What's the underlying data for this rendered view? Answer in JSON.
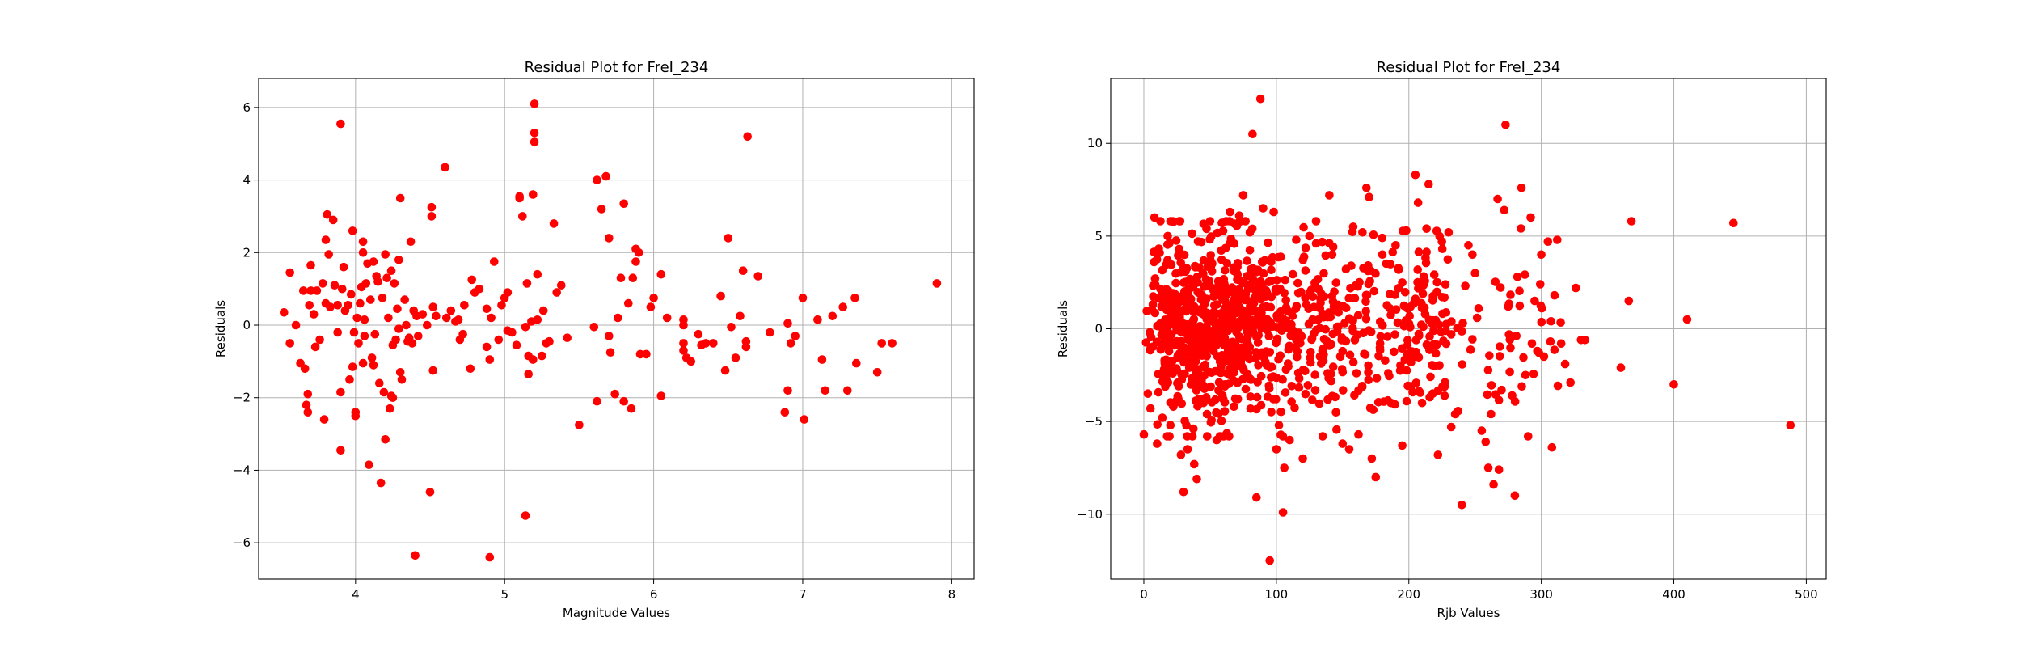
{
  "chart_data": [
    {
      "type": "scatter",
      "title": "Residual Plot for FreI_234",
      "xlabel": "Magnitude Values",
      "ylabel": "Residuals",
      "xlim": [
        3.35,
        8.15
      ],
      "ylim": [
        -7.0,
        6.8
      ],
      "xticks": [
        4,
        5,
        6,
        7,
        8
      ],
      "yticks": [
        -6,
        -4,
        -2,
        0,
        2,
        4,
        6
      ],
      "grid": true,
      "marker_color": "#ff0000",
      "points": [
        [
          3.52,
          0.35
        ],
        [
          3.56,
          1.45
        ],
        [
          3.56,
          -0.5
        ],
        [
          3.6,
          0.0
        ],
        [
          3.63,
          -1.05
        ],
        [
          3.65,
          0.95
        ],
        [
          3.66,
          -1.2
        ],
        [
          3.67,
          -2.2
        ],
        [
          3.68,
          -1.9
        ],
        [
          3.68,
          -2.4
        ],
        [
          3.69,
          0.55
        ],
        [
          3.7,
          1.65
        ],
        [
          3.7,
          0.95
        ],
        [
          3.72,
          0.3
        ],
        [
          3.73,
          -0.6
        ],
        [
          3.74,
          0.95
        ],
        [
          3.76,
          -0.4
        ],
        [
          3.78,
          1.15
        ],
        [
          3.79,
          -2.6
        ],
        [
          3.8,
          2.35
        ],
        [
          3.8,
          0.6
        ],
        [
          3.81,
          3.05
        ],
        [
          3.82,
          1.95
        ],
        [
          3.83,
          0.5
        ],
        [
          3.85,
          2.9
        ],
        [
          3.86,
          1.1
        ],
        [
          3.88,
          0.55
        ],
        [
          3.88,
          -0.2
        ],
        [
          3.9,
          5.55
        ],
        [
          3.9,
          -3.45
        ],
        [
          3.9,
          -1.85
        ],
        [
          3.91,
          1.0
        ],
        [
          3.92,
          1.6
        ],
        [
          3.93,
          0.4
        ],
        [
          3.95,
          0.55
        ],
        [
          3.96,
          -1.5
        ],
        [
          3.97,
          0.85
        ],
        [
          3.98,
          2.6
        ],
        [
          3.98,
          -1.15
        ],
        [
          3.99,
          -0.2
        ],
        [
          4.0,
          -2.5
        ],
        [
          4.0,
          -2.4
        ],
        [
          4.01,
          0.2
        ],
        [
          4.02,
          -0.5
        ],
        [
          4.03,
          0.6
        ],
        [
          4.04,
          1.05
        ],
        [
          4.05,
          2.3
        ],
        [
          4.05,
          2.0
        ],
        [
          4.05,
          -1.05
        ],
        [
          4.06,
          -0.3
        ],
        [
          4.06,
          0.15
        ],
        [
          4.07,
          1.15
        ],
        [
          4.08,
          1.7
        ],
        [
          4.09,
          -3.85
        ],
        [
          4.1,
          0.7
        ],
        [
          4.11,
          -0.9
        ],
        [
          4.12,
          -1.1
        ],
        [
          4.12,
          1.75
        ],
        [
          4.13,
          -0.25
        ],
        [
          4.14,
          1.35
        ],
        [
          4.15,
          1.2
        ],
        [
          4.16,
          -1.6
        ],
        [
          4.17,
          -4.35
        ],
        [
          4.18,
          0.75
        ],
        [
          4.19,
          -1.85
        ],
        [
          4.2,
          1.95
        ],
        [
          4.2,
          -3.15
        ],
        [
          4.21,
          1.3
        ],
        [
          4.22,
          0.2
        ],
        [
          4.23,
          -2.3
        ],
        [
          4.24,
          -1.95
        ],
        [
          4.24,
          1.5
        ],
        [
          4.25,
          -2.0
        ],
        [
          4.25,
          -0.55
        ],
        [
          4.26,
          1.15
        ],
        [
          4.27,
          -0.4
        ],
        [
          4.28,
          0.45
        ],
        [
          4.29,
          1.8
        ],
        [
          4.29,
          -0.1
        ],
        [
          4.3,
          3.5
        ],
        [
          4.3,
          -1.3
        ],
        [
          4.31,
          -1.5
        ],
        [
          4.33,
          0.7
        ],
        [
          4.34,
          0.0
        ],
        [
          4.35,
          -0.45
        ],
        [
          4.36,
          -0.35
        ],
        [
          4.37,
          2.3
        ],
        [
          4.38,
          -0.5
        ],
        [
          4.39,
          0.4
        ],
        [
          4.4,
          -6.35
        ],
        [
          4.41,
          0.25
        ],
        [
          4.42,
          -0.3
        ],
        [
          4.45,
          0.3
        ],
        [
          4.48,
          0.0
        ],
        [
          4.5,
          -4.6
        ],
        [
          4.51,
          3.25
        ],
        [
          4.51,
          3.0
        ],
        [
          4.52,
          -1.25
        ],
        [
          4.52,
          0.5
        ],
        [
          4.54,
          0.25
        ],
        [
          4.6,
          4.35
        ],
        [
          4.61,
          0.2
        ],
        [
          4.64,
          0.4
        ],
        [
          4.67,
          0.1
        ],
        [
          4.69,
          0.15
        ],
        [
          4.7,
          -0.4
        ],
        [
          4.72,
          -0.25
        ],
        [
          4.73,
          0.55
        ],
        [
          4.77,
          -1.2
        ],
        [
          4.78,
          1.25
        ],
        [
          4.8,
          0.9
        ],
        [
          4.83,
          1.0
        ],
        [
          4.88,
          0.45
        ],
        [
          4.88,
          -0.6
        ],
        [
          4.9,
          -6.4
        ],
        [
          4.9,
          -0.95
        ],
        [
          4.91,
          0.2
        ],
        [
          4.93,
          1.75
        ],
        [
          4.96,
          -0.4
        ],
        [
          4.98,
          0.55
        ],
        [
          5.0,
          0.75
        ],
        [
          5.02,
          0.9
        ],
        [
          5.02,
          -0.15
        ],
        [
          5.05,
          -0.2
        ],
        [
          5.08,
          -0.55
        ],
        [
          5.1,
          3.55
        ],
        [
          5.1,
          3.5
        ],
        [
          5.12,
          3.0
        ],
        [
          5.14,
          -5.25
        ],
        [
          5.14,
          -0.05
        ],
        [
          5.15,
          1.15
        ],
        [
          5.16,
          -0.85
        ],
        [
          5.16,
          -1.35
        ],
        [
          5.18,
          0.1
        ],
        [
          5.19,
          -0.95
        ],
        [
          5.19,
          3.6
        ],
        [
          5.2,
          6.1
        ],
        [
          5.2,
          5.3
        ],
        [
          5.2,
          5.05
        ],
        [
          5.22,
          1.4
        ],
        [
          5.22,
          0.15
        ],
        [
          5.25,
          -0.85
        ],
        [
          5.26,
          0.4
        ],
        [
          5.28,
          -0.5
        ],
        [
          5.3,
          -0.45
        ],
        [
          5.33,
          2.8
        ],
        [
          5.35,
          0.9
        ],
        [
          5.38,
          1.1
        ],
        [
          5.42,
          -0.35
        ],
        [
          5.5,
          -2.75
        ],
        [
          5.6,
          -0.05
        ],
        [
          5.62,
          -2.1
        ],
        [
          5.62,
          4.0
        ],
        [
          5.65,
          3.2
        ],
        [
          5.68,
          4.1
        ],
        [
          5.7,
          2.4
        ],
        [
          5.7,
          -0.3
        ],
        [
          5.71,
          -0.75
        ],
        [
          5.74,
          -1.9
        ],
        [
          5.76,
          0.2
        ],
        [
          5.78,
          1.3
        ],
        [
          5.8,
          3.35
        ],
        [
          5.8,
          -2.1
        ],
        [
          5.83,
          0.6
        ],
        [
          5.85,
          -2.3
        ],
        [
          5.86,
          1.3
        ],
        [
          5.88,
          2.1
        ],
        [
          5.88,
          1.75
        ],
        [
          5.9,
          2.0
        ],
        [
          5.91,
          -0.8
        ],
        [
          5.95,
          -0.8
        ],
        [
          5.98,
          0.5
        ],
        [
          6.0,
          0.75
        ],
        [
          6.05,
          1.4
        ],
        [
          6.05,
          -1.95
        ],
        [
          6.09,
          0.2
        ],
        [
          6.2,
          -0.7
        ],
        [
          6.2,
          -0.5
        ],
        [
          6.2,
          0.0
        ],
        [
          6.2,
          0.15
        ],
        [
          6.22,
          -0.9
        ],
        [
          6.25,
          -1.0
        ],
        [
          6.3,
          -0.25
        ],
        [
          6.32,
          -0.55
        ],
        [
          6.35,
          -0.5
        ],
        [
          6.4,
          -0.5
        ],
        [
          6.45,
          0.8
        ],
        [
          6.48,
          -1.25
        ],
        [
          6.5,
          2.4
        ],
        [
          6.52,
          -0.05
        ],
        [
          6.55,
          -0.9
        ],
        [
          6.58,
          0.25
        ],
        [
          6.6,
          1.5
        ],
        [
          6.62,
          -0.45
        ],
        [
          6.62,
          -0.6
        ],
        [
          6.63,
          5.2
        ],
        [
          6.7,
          1.35
        ],
        [
          6.78,
          -0.2
        ],
        [
          6.88,
          -2.4
        ],
        [
          6.9,
          -1.8
        ],
        [
          6.9,
          0.05
        ],
        [
          6.92,
          -0.5
        ],
        [
          6.95,
          -0.3
        ],
        [
          7.0,
          0.75
        ],
        [
          7.01,
          -2.6
        ],
        [
          7.1,
          0.15
        ],
        [
          7.13,
          -0.95
        ],
        [
          7.15,
          -1.8
        ],
        [
          7.2,
          0.25
        ],
        [
          7.27,
          0.5
        ],
        [
          7.3,
          -1.8
        ],
        [
          7.35,
          0.75
        ],
        [
          7.36,
          -1.05
        ],
        [
          7.5,
          -1.3
        ],
        [
          7.53,
          -0.5
        ],
        [
          7.6,
          -0.5
        ],
        [
          7.9,
          1.15
        ]
      ]
    },
    {
      "type": "scatter",
      "title": "Residual Plot for FreI_234",
      "xlabel": "Rjb Values",
      "ylabel": "Residuals",
      "xlim": [
        -25,
        515
      ],
      "ylim": [
        -13.5,
        13.5
      ],
      "xticks": [
        0,
        100,
        200,
        300,
        400,
        500
      ],
      "yticks": [
        -10,
        -5,
        0,
        5,
        10
      ],
      "grid": true,
      "marker_color": "#ff0000",
      "random_seed": 73,
      "num_points": 1200,
      "points": [
        [
          0,
          -5.7
        ],
        [
          3,
          -3.5
        ],
        [
          5,
          -4.3
        ],
        [
          8,
          6.0
        ],
        [
          10,
          -6.2
        ],
        [
          12,
          4.1
        ],
        [
          14,
          -4.8
        ],
        [
          18,
          5.0
        ],
        [
          20,
          -5.2
        ],
        [
          28,
          -6.8
        ],
        [
          30,
          -8.8
        ],
        [
          33,
          -6.5
        ],
        [
          38,
          -7.3
        ],
        [
          40,
          -8.1
        ],
        [
          45,
          -4.0
        ],
        [
          50,
          5.8
        ],
        [
          55,
          -6.0
        ],
        [
          60,
          -3.8
        ],
        [
          65,
          6.3
        ],
        [
          68,
          -4.2
        ],
        [
          72,
          6.1
        ],
        [
          75,
          7.2
        ],
        [
          80,
          5.2
        ],
        [
          82,
          10.5
        ],
        [
          85,
          -9.1
        ],
        [
          88,
          12.4
        ],
        [
          90,
          6.5
        ],
        [
          95,
          -12.5
        ],
        [
          98,
          6.3
        ],
        [
          100,
          -6.5
        ],
        [
          102,
          -5.2
        ],
        [
          105,
          -9.9
        ],
        [
          106,
          -7.5
        ],
        [
          110,
          -6.0
        ],
        [
          115,
          4.8
        ],
        [
          120,
          -7.0
        ],
        [
          125,
          5.0
        ],
        [
          130,
          4.6
        ],
        [
          135,
          -5.8
        ],
        [
          140,
          7.2
        ],
        [
          145,
          -4.5
        ],
        [
          150,
          -6.2
        ],
        [
          155,
          -6.5
        ],
        [
          158,
          5.5
        ],
        [
          162,
          -5.7
        ],
        [
          165,
          5.2
        ],
        [
          168,
          7.6
        ],
        [
          170,
          7.1
        ],
        [
          172,
          -7.0
        ],
        [
          175,
          -8.0
        ],
        [
          180,
          4.0
        ],
        [
          190,
          4.5
        ],
        [
          195,
          -6.3
        ],
        [
          198,
          5.3
        ],
        [
          205,
          8.3
        ],
        [
          207,
          6.8
        ],
        [
          210,
          -4.0
        ],
        [
          215,
          7.8
        ],
        [
          218,
          -3.5
        ],
        [
          222,
          -6.8
        ],
        [
          225,
          4.7
        ],
        [
          230,
          5.2
        ],
        [
          232,
          -5.3
        ],
        [
          235,
          -4.6
        ],
        [
          240,
          -9.5
        ],
        [
          245,
          4.5
        ],
        [
          248,
          4.0
        ],
        [
          250,
          3.0
        ],
        [
          255,
          -5.5
        ],
        [
          258,
          -6.1
        ],
        [
          260,
          -7.5
        ],
        [
          262,
          -4.6
        ],
        [
          264,
          -8.4
        ],
        [
          267,
          7.0
        ],
        [
          268,
          -7.6
        ],
        [
          270,
          -3.3
        ],
        [
          272,
          6.4
        ],
        [
          273,
          11.0
        ],
        [
          275,
          1.2
        ],
        [
          278,
          -3.6
        ],
        [
          280,
          -9.0
        ],
        [
          282,
          2.8
        ],
        [
          285,
          7.6
        ],
        [
          288,
          -2.5
        ],
        [
          290,
          -5.8
        ],
        [
          292,
          6.0
        ],
        [
          295,
          1.5
        ],
        [
          297,
          -1.2
        ],
        [
          300,
          4.0
        ],
        [
          302,
          -1.5
        ],
        [
          305,
          4.7
        ],
        [
          308,
          -6.4
        ],
        [
          310,
          1.8
        ],
        [
          312,
          4.8
        ],
        [
          315,
          -0.8
        ],
        [
          318,
          -1.9
        ],
        [
          322,
          -2.9
        ],
        [
          326,
          2.2
        ],
        [
          330,
          -0.6
        ],
        [
          333,
          -0.6
        ],
        [
          360,
          -2.1
        ],
        [
          366,
          1.5
        ],
        [
          368,
          5.8
        ],
        [
          400,
          -3.0
        ],
        [
          410,
          0.5
        ],
        [
          445,
          5.7
        ],
        [
          488,
          -5.2
        ]
      ]
    }
  ]
}
